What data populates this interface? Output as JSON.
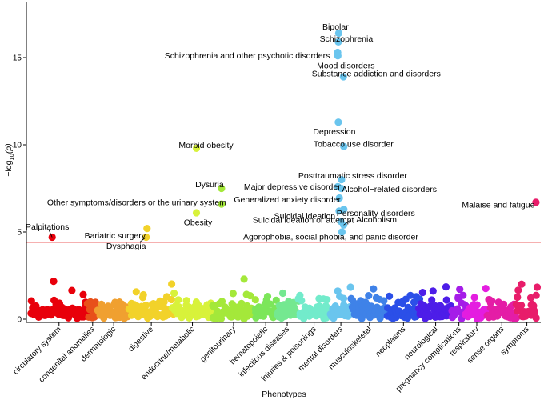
{
  "chart_data": {
    "type": "scatter",
    "title": "",
    "xlabel": "Phenotypes",
    "ylabel": "-log10(p)",
    "ylabel_parts": {
      "prefix": "−log",
      "subscript": "10",
      "suffix": "(p)"
    },
    "ylim": [
      0,
      18.3
    ],
    "yticks": [
      0,
      5,
      10,
      15
    ],
    "threshold": 4.4,
    "threshold_color": "#F08080",
    "categories": [
      {
        "name": "circulatory system",
        "color": "#E8000B",
        "n": 80,
        "max_bg": 2.8
      },
      {
        "name": "congenital anomalies",
        "color": "#E8501A",
        "n": 14,
        "max_bg": 1.9
      },
      {
        "name": "dermatologic",
        "color": "#F0A030",
        "n": 45,
        "max_bg": 3.7
      },
      {
        "name": "digestive",
        "color": "#F2D22A",
        "n": 60,
        "max_bg": 3.2
      },
      {
        "name": "endocrine/metabolic",
        "color": "#D8F23A",
        "n": 55,
        "max_bg": 2.8
      },
      {
        "name": "genitourinary",
        "color": "#A4E83A",
        "n": 60,
        "max_bg": 3.7
      },
      {
        "name": "hematopoietic",
        "color": "#7CE65A",
        "n": 30,
        "max_bg": 2.4
      },
      {
        "name": "infectious diseases",
        "color": "#74E890",
        "n": 30,
        "max_bg": 3.1
      },
      {
        "name": "injuries & poisonings",
        "color": "#72EBCB",
        "n": 45,
        "max_bg": 2.5
      },
      {
        "name": "mental disorders",
        "color": "#6AC5EE",
        "n": 30,
        "max_bg": 3.4
      },
      {
        "name": "musculoskeletal",
        "color": "#3F82E8",
        "n": 50,
        "max_bg": 3.0
      },
      {
        "name": "neoplasms",
        "color": "#2B4FE8",
        "n": 45,
        "max_bg": 2.2
      },
      {
        "name": "neurological",
        "color": "#4D1DE8",
        "n": 45,
        "max_bg": 2.9
      },
      {
        "name": "pregnancy complications",
        "color": "#A51DE8",
        "n": 20,
        "max_bg": 1.9
      },
      {
        "name": "respiratory",
        "color": "#E41DE0",
        "n": 30,
        "max_bg": 2.9
      },
      {
        "name": "sense organs",
        "color": "#E41DA6",
        "n": 40,
        "max_bg": 2.6
      },
      {
        "name": "symptoms",
        "color": "#E81D6A",
        "n": 30,
        "max_bg": 2.3
      }
    ],
    "labeled_points": [
      {
        "label": "Bipolar",
        "category": "mental disorders",
        "offset": 0.4,
        "y": 16.4
      },
      {
        "label": "Schizophrenia",
        "category": "mental disorders",
        "offset": 0.38,
        "y": 15.9
      },
      {
        "label": "Schizophrenia and other psychotic disorders",
        "category": "mental disorders",
        "offset": 0.35,
        "y": 15.3
      },
      {
        "label": "Mood disorders",
        "category": "mental disorders",
        "offset": 0.36,
        "y": 15.1
      },
      {
        "label": "Substance addiction and disorders",
        "category": "mental disorders",
        "offset": 0.62,
        "y": 13.9
      },
      {
        "label": "Depression",
        "category": "mental disorders",
        "offset": 0.38,
        "y": 11.3
      },
      {
        "label": "Tobacco use disorder",
        "category": "mental disorders",
        "offset": 0.64,
        "y": 9.9
      },
      {
        "label": "Posttraumatic stress disorder",
        "category": "mental disorders",
        "offset": 0.53,
        "y": 8.0
      },
      {
        "label": "Major depressive disorder",
        "category": "mental disorders",
        "offset": 0.36,
        "y": 7.6
      },
      {
        "label": "Alcohol−related disorders",
        "category": "mental disorders",
        "offset": 0.52,
        "y": 7.5
      },
      {
        "label": "Generalized anxiety disorder",
        "category": "mental disorders",
        "offset": 0.43,
        "y": 6.95
      },
      {
        "label": "Suicidal ideation",
        "category": "mental disorders",
        "offset": 0.42,
        "y": 6.2
      },
      {
        "label": "Personality disorders",
        "category": "mental disorders",
        "offset": 0.64,
        "y": 6.3
      },
      {
        "label": "Suicidal ideation or attempt",
        "category": "mental disorders",
        "offset": 0.5,
        "y": 5.6
      },
      {
        "label": "Alcoholism",
        "category": "mental disorders",
        "offset": 0.63,
        "y": 5.4
      },
      {
        "label": "Agorophobia, social phobia, and panic disorder",
        "category": "mental disorders",
        "offset": 0.55,
        "y": 5.0
      },
      {
        "label": "Morbid obesity",
        "category": "endocrine/metabolic",
        "offset": 0.6,
        "y": 9.8
      },
      {
        "label": "Obesity",
        "category": "endocrine/metabolic",
        "offset": 0.6,
        "y": 6.1
      },
      {
        "label": "Dysuria",
        "category": "genitourinary",
        "offset": 0.22,
        "y": 7.5
      },
      {
        "label": "Other symptoms/disorders or the urinary system",
        "category": "genitourinary",
        "offset": 0.22,
        "y": 6.6
      },
      {
        "label": "Malaise and fatigue",
        "category": "symptoms",
        "offset": 0.92,
        "y": 6.7
      },
      {
        "label": "Palpitations",
        "category": "circulatory system",
        "offset": 0.38,
        "y": 4.7
      },
      {
        "label": "Bariatric surgery",
        "category": "digestive",
        "offset": 0.4,
        "y": 5.2
      },
      {
        "label": "Dysphagia",
        "category": "digestive",
        "offset": 0.38,
        "y": 4.7
      }
    ]
  }
}
